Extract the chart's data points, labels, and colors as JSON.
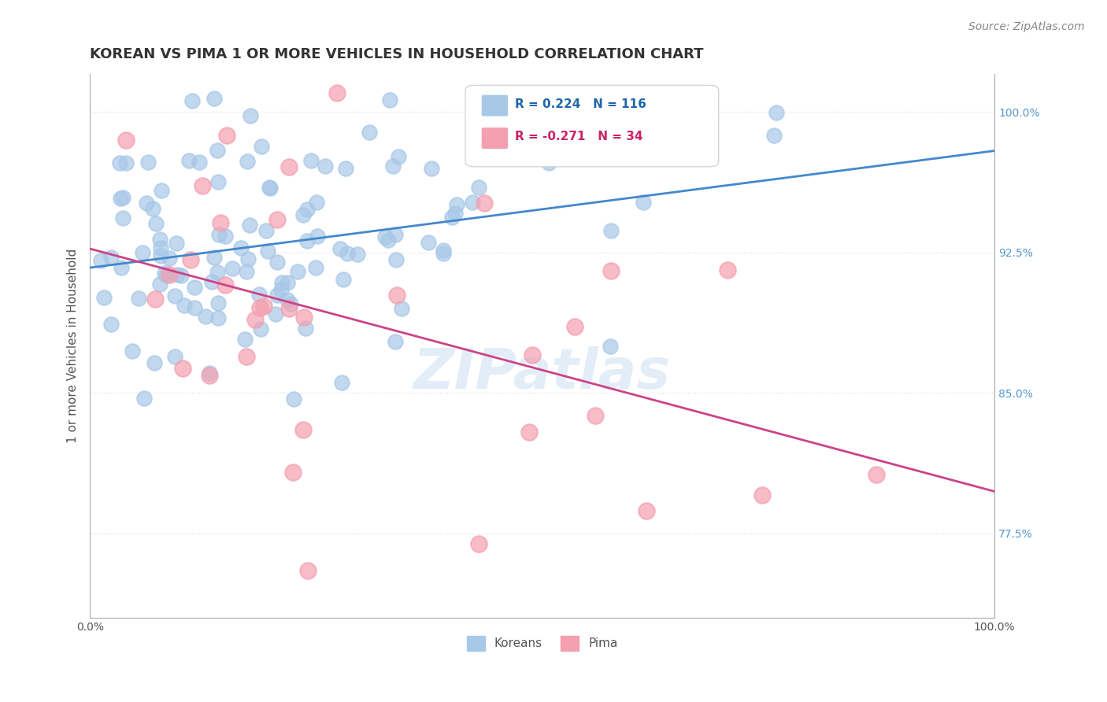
{
  "title": "KOREAN VS PIMA 1 OR MORE VEHICLES IN HOUSEHOLD CORRELATION CHART",
  "source_text": "Source: ZipAtlas.com",
  "xlabel": "",
  "ylabel": "1 or more Vehicles in Household",
  "xlim": [
    0.0,
    1.0
  ],
  "ylim": [
    0.73,
    1.02
  ],
  "yticks": [
    0.775,
    0.85,
    0.925,
    1.0
  ],
  "ytick_labels": [
    "77.5%",
    "85.0%",
    "92.5%",
    "100.0%"
  ],
  "xticks": [
    0.0,
    0.1,
    0.2,
    0.3,
    0.4,
    0.5,
    0.6,
    0.7,
    0.8,
    0.9,
    1.0
  ],
  "xtick_labels": [
    "0.0%",
    "",
    "",
    "",
    "",
    "",
    "",
    "",
    "",
    "",
    "100.0%"
  ],
  "korean_color": "#a8c8e8",
  "pima_color": "#f4a0b0",
  "korean_R": 0.224,
  "korean_N": 116,
  "pima_R": -0.271,
  "pima_N": 34,
  "korean_line_color": "#4488cc",
  "pima_line_color": "#cc4488",
  "legend_korean_label": "Koreans",
  "legend_pima_label": "Pima",
  "watermark": "ZIPatlas",
  "background_color": "#ffffff",
  "grid_color": "#dddddd"
}
